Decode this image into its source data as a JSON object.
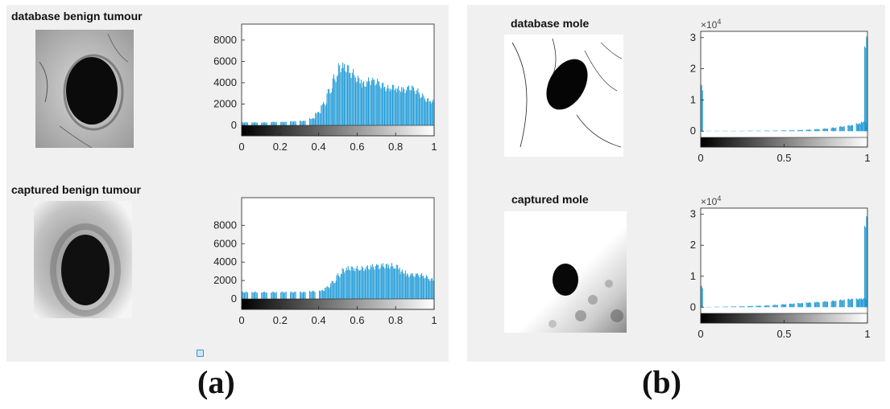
{
  "panels": {
    "a": {
      "label": "(a)",
      "top_title": "database benign tumour",
      "bottom_title": "captured benign tumour"
    },
    "b": {
      "label": "(b)",
      "top_title": "database mole",
      "bottom_title": "captured mole"
    }
  },
  "colors": {
    "bar": "#1f9ad6",
    "axis": "#222222",
    "panel": "#f0f0f0"
  },
  "chart_data": [
    {
      "id": "a-top",
      "type": "bar",
      "title": "",
      "xlabel": "",
      "ylabel": "",
      "xlim": [
        0,
        1
      ],
      "ylim": [
        0,
        9500
      ],
      "xticks": [
        "0",
        "0.2",
        "0.4",
        "0.6",
        "0.8",
        "1"
      ],
      "yticks": [
        "0",
        "2000",
        "4000",
        "6000",
        "8000"
      ],
      "y_exponent": "",
      "x": [
        0.02,
        0.07,
        0.12,
        0.17,
        0.22,
        0.27,
        0.32,
        0.37,
        0.4,
        0.43,
        0.46,
        0.49,
        0.52,
        0.55,
        0.58,
        0.61,
        0.64,
        0.67,
        0.7,
        0.73,
        0.76,
        0.79,
        0.82,
        0.85,
        0.88,
        0.91,
        0.94,
        0.97,
        1.0
      ],
      "values": [
        300,
        300,
        300,
        350,
        350,
        400,
        450,
        700,
        1300,
        2200,
        3500,
        4800,
        5900,
        5800,
        5300,
        4700,
        4200,
        4500,
        4400,
        4100,
        3800,
        3900,
        3700,
        3600,
        3800,
        3500,
        3000,
        2600,
        2400
      ],
      "colorbar": true
    },
    {
      "id": "a-bottom",
      "type": "bar",
      "title": "",
      "xlabel": "",
      "ylabel": "",
      "xlim": [
        0,
        1
      ],
      "ylim": [
        0,
        11000
      ],
      "xticks": [
        "0",
        "0.2",
        "0.4",
        "0.6",
        "0.8",
        "1"
      ],
      "yticks": [
        "0",
        "2000",
        "4000",
        "6000",
        "8000"
      ],
      "y_exponent": "",
      "x": [
        0.02,
        0.07,
        0.12,
        0.17,
        0.22,
        0.27,
        0.32,
        0.37,
        0.42,
        0.45,
        0.48,
        0.51,
        0.54,
        0.57,
        0.6,
        0.63,
        0.66,
        0.69,
        0.72,
        0.75,
        0.78,
        0.81,
        0.84,
        0.87,
        0.9,
        0.93,
        0.96,
        0.99
      ],
      "values": [
        800,
        800,
        800,
        800,
        800,
        800,
        800,
        900,
        1000,
        1400,
        2000,
        2800,
        3400,
        3600,
        3600,
        3600,
        3700,
        3800,
        3800,
        3900,
        3900,
        3800,
        3200,
        2800,
        2800,
        2800,
        2600,
        2300
      ],
      "colorbar": true
    },
    {
      "id": "b-top",
      "type": "bar",
      "title": "",
      "xlabel": "",
      "ylabel": "",
      "xlim": [
        0,
        1
      ],
      "ylim": [
        -2000,
        32000
      ],
      "xticks": [
        "0",
        "0.5",
        "1"
      ],
      "yticks": [
        "0",
        "1",
        "2",
        "3"
      ],
      "y_exponent": "×10",
      "y_exponent_power": "4",
      "x": [
        0.0,
        0.05,
        0.1,
        0.15,
        0.2,
        0.25,
        0.3,
        0.35,
        0.4,
        0.45,
        0.5,
        0.55,
        0.6,
        0.65,
        0.7,
        0.75,
        0.8,
        0.85,
        0.9,
        0.95,
        0.98,
        1.0
      ],
      "values": [
        15000,
        100,
        100,
        100,
        100,
        100,
        150,
        150,
        200,
        200,
        250,
        300,
        400,
        500,
        700,
        900,
        1200,
        1600,
        2000,
        2600,
        3200,
        31000
      ],
      "colorbar": true
    },
    {
      "id": "b-bottom",
      "type": "bar",
      "title": "",
      "xlabel": "",
      "ylabel": "",
      "xlim": [
        0,
        1
      ],
      "ylim": [
        -2000,
        32000
      ],
      "xticks": [
        "0",
        "0.5",
        "1"
      ],
      "yticks": [
        "0",
        "1",
        "2",
        "3"
      ],
      "y_exponent": "×10",
      "y_exponent_power": "4",
      "x": [
        0.0,
        0.05,
        0.1,
        0.15,
        0.2,
        0.25,
        0.3,
        0.35,
        0.4,
        0.45,
        0.5,
        0.55,
        0.6,
        0.65,
        0.7,
        0.75,
        0.8,
        0.85,
        0.9,
        0.95,
        0.98,
        1.0
      ],
      "values": [
        7000,
        100,
        150,
        200,
        250,
        300,
        400,
        500,
        600,
        800,
        1000,
        1200,
        1400,
        1600,
        1800,
        2000,
        2200,
        2500,
        2800,
        2900,
        3000,
        30000
      ],
      "colorbar": true
    }
  ]
}
